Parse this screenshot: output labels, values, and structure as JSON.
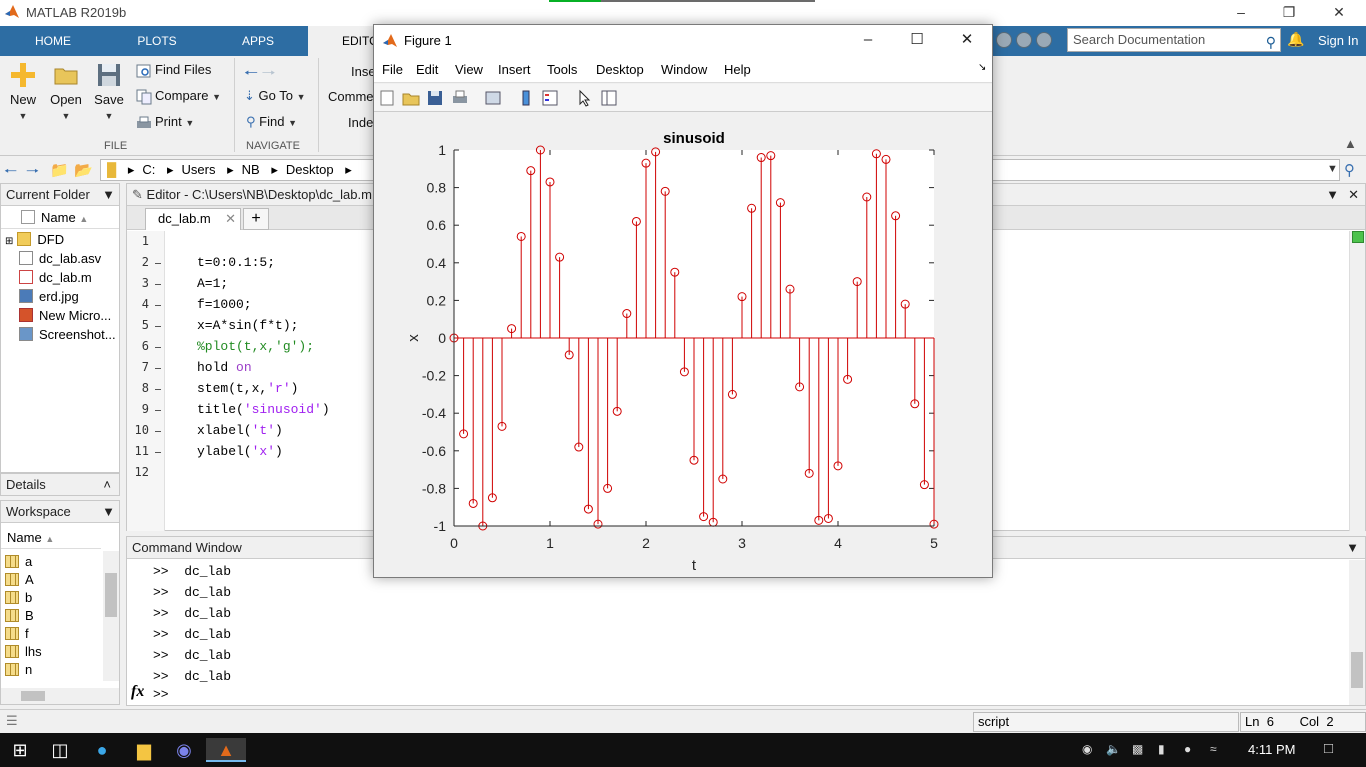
{
  "window": {
    "title": "MATLAB R2019b"
  },
  "ribbon_tabs": [
    "HOME",
    "PLOTS",
    "APPS",
    "EDITOR"
  ],
  "search": {
    "placeholder": "Search Documentation"
  },
  "sign_in": "Sign In",
  "ribbon": {
    "new": "New",
    "open": "Open",
    "save": "Save",
    "find_files": "Find Files",
    "compare": "Compare",
    "print": "Print",
    "go_to": "Go To",
    "find": "Find",
    "insert": "Inse",
    "comment": "Comme",
    "indent": "Inde",
    "group_file": "FILE",
    "group_navigate": "NAVIGATE"
  },
  "address": {
    "parts": [
      "C:",
      "Users",
      "NB",
      "Desktop"
    ]
  },
  "current_folder": {
    "title": "Current Folder",
    "col_name": "Name",
    "items": [
      "DFD",
      "dc_lab.asv",
      "dc_lab.m",
      "erd.jpg",
      "New Micro...",
      "Screenshot..."
    ]
  },
  "details": {
    "title": "Details"
  },
  "workspace": {
    "title": "Workspace",
    "col_name": "Name",
    "vars": [
      "a",
      "A",
      "b",
      "B",
      "f",
      "lhs",
      "n"
    ]
  },
  "editor": {
    "title": "Editor - C:\\Users\\NB\\Desktop\\dc_lab.m",
    "tab": "dc_lab.m",
    "line_numbers": [
      "1",
      "2",
      "3",
      "4",
      "5",
      "6",
      "7",
      "8",
      "9",
      "10",
      "11",
      "12"
    ],
    "lines": [
      {
        "code": "t=0:0.1:5;"
      },
      {
        "code": "A=1;"
      },
      {
        "code": "f=1000;"
      },
      {
        "code": "x=A*sin(f*t);"
      },
      {
        "code": "%plot(t,x,'g');"
      },
      {
        "pre": "hold ",
        "kw": "on"
      },
      {
        "pre": "stem(t,x,",
        "str": "'r'",
        "post": ")"
      },
      {
        "pre": "title(",
        "str": "'sinusoid'",
        "post": ")"
      },
      {
        "pre": "xlabel(",
        "str": "'t'",
        "post": ")"
      },
      {
        "pre": "ylabel(",
        "str": "'x'",
        "post": ")"
      }
    ]
  },
  "command_window": {
    "title": "Command Window",
    "history": [
      ">>  dc_lab",
      ">>  dc_lab",
      ">>  dc_lab",
      ">>  dc_lab",
      ">>  dc_lab",
      ">>  dc_lab"
    ],
    "prompt": ">>",
    "fx": "fx"
  },
  "status": {
    "mode": "script",
    "ln_label": "Ln",
    "ln": "6",
    "col_label": "Col",
    "col": "2"
  },
  "taskbar": {
    "time": "4:11 PM"
  },
  "figure": {
    "title": "Figure 1",
    "menus": [
      "File",
      "Edit",
      "View",
      "Insert",
      "Tools",
      "Desktop",
      "Window",
      "Help"
    ],
    "stem_color": "#d00000"
  },
  "chart_data": {
    "type": "stem",
    "title": "sinusoid",
    "xlabel": "t",
    "ylabel": "x",
    "xlim": [
      0,
      5
    ],
    "ylim": [
      -1,
      1
    ],
    "xticks": [
      "0",
      "1",
      "2",
      "3",
      "4",
      "5"
    ],
    "yticks": [
      "1",
      "0.8",
      "0.6",
      "0.4",
      "0.2",
      "0",
      "-0.2",
      "-0.4",
      "-0.6",
      "-0.8",
      "-1"
    ],
    "x": [
      0,
      0.1,
      0.2,
      0.3,
      0.4,
      0.5,
      0.6,
      0.7,
      0.8,
      0.9,
      1.0,
      1.1,
      1.2,
      1.3,
      1.4,
      1.5,
      1.6,
      1.7,
      1.8,
      1.9,
      2.0,
      2.1,
      2.2,
      2.3,
      2.4,
      2.5,
      2.6,
      2.7,
      2.8,
      2.9,
      3.0,
      3.1,
      3.2,
      3.3,
      3.4,
      3.5,
      3.6,
      3.7,
      3.8,
      3.9,
      4.0,
      4.1,
      4.2,
      4.3,
      4.4,
      4.5,
      4.6,
      4.7,
      4.8,
      4.9,
      5.0
    ],
    "series": [
      {
        "values": [
          0,
          -0.51,
          -0.88,
          -1.0,
          -0.85,
          -0.47,
          0.05,
          0.54,
          0.89,
          1.0,
          0.83,
          0.43,
          -0.09,
          -0.58,
          -0.91,
          -0.99,
          -0.8,
          -0.39,
          0.13,
          0.62,
          0.93,
          0.99,
          0.78,
          0.35,
          -0.18,
          -0.65,
          -0.95,
          -0.98,
          -0.75,
          -0.3,
          0.22,
          0.69,
          0.96,
          0.97,
          0.72,
          0.26,
          -0.26,
          -0.72,
          -0.97,
          -0.96,
          -0.68,
          -0.22,
          0.3,
          0.75,
          0.98,
          0.95,
          0.65,
          0.18,
          -0.35,
          -0.78,
          -0.99
        ]
      }
    ]
  }
}
